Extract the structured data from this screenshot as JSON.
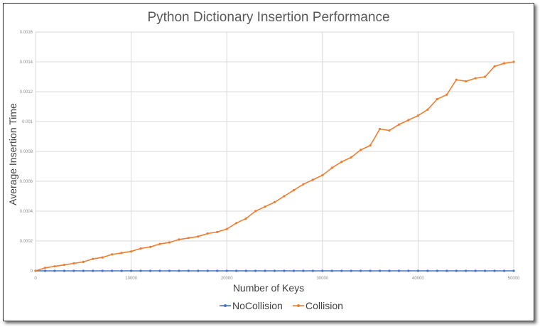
{
  "chart_data": {
    "type": "line",
    "title": "Python Dictionary Insertion Performance",
    "xlabel": "Number of Keys",
    "ylabel": "Average Insertion Time",
    "xlim": [
      0,
      50000
    ],
    "ylim": [
      0,
      0.0016
    ],
    "x_ticks": [
      0,
      10000,
      20000,
      30000,
      40000,
      50000
    ],
    "x_tick_labels": [
      "0",
      "10000",
      "20000",
      "30000",
      "40000",
      "50000"
    ],
    "y_ticks": [
      0,
      0.0002,
      0.0004,
      0.0006,
      0.0008,
      0.001,
      0.0012,
      0.0014,
      0.0016
    ],
    "y_tick_labels": [
      "0",
      "0.0002",
      "0.0004",
      "0.0006",
      "0.0008",
      "0.001",
      "0.0012",
      "0.0014",
      "0.0016"
    ],
    "grid": true,
    "legend_position": "bottom",
    "x": [
      0,
      1000,
      2000,
      3000,
      4000,
      5000,
      6000,
      7000,
      8000,
      9000,
      10000,
      11000,
      12000,
      13000,
      14000,
      15000,
      16000,
      17000,
      18000,
      19000,
      20000,
      21000,
      22000,
      23000,
      24000,
      25000,
      26000,
      27000,
      28000,
      29000,
      30000,
      31000,
      32000,
      33000,
      34000,
      35000,
      36000,
      37000,
      38000,
      39000,
      40000,
      41000,
      42000,
      43000,
      44000,
      45000,
      46000,
      47000,
      48000,
      49000,
      50000
    ],
    "series": [
      {
        "name": "NoCollision",
        "color": "#4472c4",
        "values": [
          0,
          0,
          0,
          0,
          0,
          0,
          0,
          0,
          0,
          0,
          0,
          0,
          0,
          0,
          0,
          0,
          0,
          0,
          0,
          0,
          0,
          0,
          0,
          0,
          0,
          0,
          0,
          0,
          0,
          0,
          0,
          0,
          0,
          0,
          0,
          0,
          0,
          0,
          0,
          0,
          0,
          0,
          0,
          0,
          0,
          0,
          0,
          0,
          0,
          0,
          0
        ]
      },
      {
        "name": "Collision",
        "color": "#ed7d31",
        "values": [
          0.0,
          2e-05,
          3e-05,
          4e-05,
          5e-05,
          6e-05,
          8e-05,
          9e-05,
          0.00011,
          0.00012,
          0.00013,
          0.00015,
          0.00016,
          0.00018,
          0.00019,
          0.00021,
          0.00022,
          0.00023,
          0.00025,
          0.00026,
          0.00028,
          0.00032,
          0.00035,
          0.0004,
          0.00043,
          0.00046,
          0.0005,
          0.00054,
          0.00058,
          0.00061,
          0.00064,
          0.00069,
          0.00073,
          0.00076,
          0.00081,
          0.00084,
          0.00095,
          0.00094,
          0.00098,
          0.00101,
          0.00104,
          0.00108,
          0.00115,
          0.00118,
          0.00128,
          0.00127,
          0.00129,
          0.0013,
          0.00137,
          0.00139,
          0.0014
        ]
      }
    ]
  }
}
